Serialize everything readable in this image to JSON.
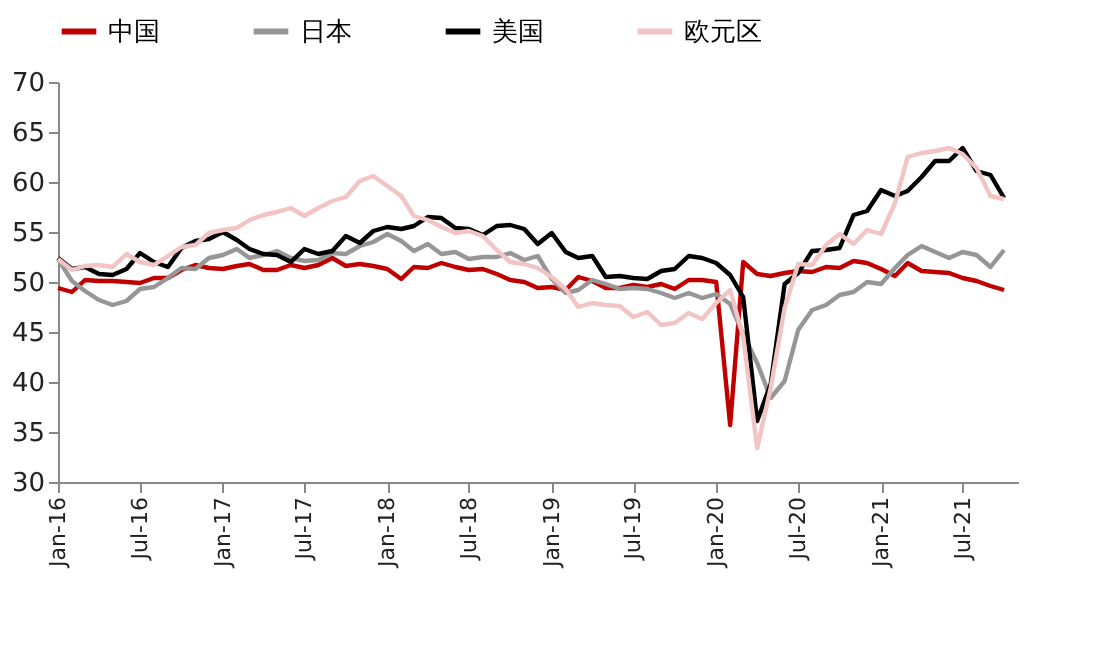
{
  "chart_data": {
    "type": "line",
    "x": [
      "2016-01",
      "2016-02",
      "2016-03",
      "2016-04",
      "2016-05",
      "2016-06",
      "2016-07",
      "2016-08",
      "2016-09",
      "2016-10",
      "2016-11",
      "2016-12",
      "2017-01",
      "2017-02",
      "2017-03",
      "2017-04",
      "2017-05",
      "2017-06",
      "2017-07",
      "2017-08",
      "2017-09",
      "2017-10",
      "2017-11",
      "2017-12",
      "2018-01",
      "2018-02",
      "2018-03",
      "2018-04",
      "2018-05",
      "2018-06",
      "2018-07",
      "2018-08",
      "2018-09",
      "2018-10",
      "2018-11",
      "2018-12",
      "2019-01",
      "2019-02",
      "2019-03",
      "2019-04",
      "2019-05",
      "2019-06",
      "2019-07",
      "2019-08",
      "2019-09",
      "2019-10",
      "2019-11",
      "2019-12",
      "2020-01",
      "2020-02",
      "2020-03",
      "2020-04",
      "2020-05",
      "2020-06",
      "2020-07",
      "2020-08",
      "2020-09",
      "2020-10",
      "2020-11",
      "2020-12",
      "2021-01",
      "2021-02",
      "2021-03",
      "2021-04",
      "2021-05",
      "2021-06",
      "2021-07",
      "2021-08",
      "2021-09",
      "2021-10"
    ],
    "xlim": [
      "2016-01",
      "2021-11"
    ],
    "ylim": [
      30,
      70
    ],
    "yticks": [
      30,
      35,
      40,
      45,
      50,
      55,
      60,
      65,
      70
    ],
    "xticks": [
      {
        "value": "2016-01",
        "label": "Jan-16"
      },
      {
        "value": "2016-07",
        "label": "Jul-16"
      },
      {
        "value": "2017-01",
        "label": "Jan-17"
      },
      {
        "value": "2017-07",
        "label": "Jul-17"
      },
      {
        "value": "2018-01",
        "label": "Jan-18"
      },
      {
        "value": "2018-07",
        "label": "Jul-18"
      },
      {
        "value": "2019-01",
        "label": "Jan-19"
      },
      {
        "value": "2019-07",
        "label": "Jul-19"
      },
      {
        "value": "2020-01",
        "label": "Jan-20"
      },
      {
        "value": "2020-07",
        "label": "Jul-20"
      },
      {
        "value": "2021-01",
        "label": "Jan-21"
      },
      {
        "value": "2021-07",
        "label": "Jul-21"
      }
    ],
    "grid": false,
    "legend": "top",
    "marker": "none",
    "line_style": "solid",
    "series": [
      {
        "name": "中国",
        "color": "#c00000",
        "values": [
          49.4,
          49.0,
          50.2,
          50.1,
          50.1,
          50.0,
          49.9,
          50.4,
          50.4,
          51.2,
          51.7,
          51.4,
          51.3,
          51.6,
          51.8,
          51.2,
          51.2,
          51.7,
          51.4,
          51.7,
          52.4,
          51.6,
          51.8,
          51.6,
          51.3,
          50.3,
          51.5,
          51.4,
          51.9,
          51.5,
          51.2,
          51.3,
          50.8,
          50.2,
          50.0,
          49.4,
          49.5,
          49.2,
          50.5,
          50.1,
          49.4,
          49.4,
          49.7,
          49.5,
          49.8,
          49.3,
          50.2,
          50.2,
          50.0,
          35.7,
          52.0,
          50.8,
          50.6,
          50.9,
          51.1,
          51.0,
          51.5,
          51.4,
          52.1,
          51.9,
          51.3,
          50.6,
          51.9,
          51.1,
          51.0,
          50.9,
          50.4,
          50.1,
          49.6,
          49.2
        ]
      },
      {
        "name": "日本",
        "color": "#969696",
        "values": [
          52.3,
          50.1,
          49.1,
          48.2,
          47.7,
          48.1,
          49.3,
          49.5,
          50.4,
          51.4,
          51.3,
          52.4,
          52.7,
          53.3,
          52.4,
          52.7,
          53.1,
          52.4,
          52.1,
          52.2,
          52.9,
          52.8,
          53.6,
          54.0,
          54.8,
          54.1,
          53.1,
          53.8,
          52.8,
          53.0,
          52.3,
          52.5,
          52.5,
          52.9,
          52.2,
          52.6,
          50.3,
          48.9,
          49.2,
          50.2,
          49.8,
          49.3,
          49.4,
          49.3,
          48.9,
          48.4,
          48.9,
          48.4,
          48.8,
          47.8,
          44.8,
          41.9,
          38.4,
          40.1,
          45.2,
          47.2,
          47.7,
          48.7,
          49.0,
          50.0,
          49.8,
          51.4,
          52.7,
          53.6,
          53.0,
          52.4,
          53.0,
          52.7,
          51.5,
          53.2
        ]
      },
      {
        "name": "美国",
        "color": "#000000",
        "values": [
          52.4,
          51.3,
          51.5,
          50.8,
          50.7,
          51.3,
          52.9,
          52.0,
          51.5,
          53.4,
          54.1,
          54.3,
          55.0,
          54.2,
          53.3,
          52.8,
          52.7,
          52.0,
          53.3,
          52.8,
          53.1,
          54.6,
          53.9,
          55.1,
          55.5,
          55.3,
          55.6,
          56.5,
          56.4,
          55.4,
          55.3,
          54.7,
          55.6,
          55.7,
          55.3,
          53.8,
          54.9,
          53.0,
          52.4,
          52.6,
          50.5,
          50.6,
          50.4,
          50.3,
          51.1,
          51.3,
          52.6,
          52.4,
          51.9,
          50.7,
          48.5,
          36.1,
          39.8,
          49.8,
          50.9,
          53.1,
          53.2,
          53.4,
          56.7,
          57.1,
          59.2,
          58.6,
          59.1,
          60.5,
          62.1,
          62.1,
          63.4,
          61.1,
          60.7,
          58.4
        ]
      },
      {
        "name": "欧元区",
        "color": "#f2c4c4",
        "values": [
          52.3,
          51.2,
          51.6,
          51.7,
          51.5,
          52.8,
          52.0,
          51.7,
          52.6,
          53.5,
          53.7,
          54.9,
          55.2,
          55.4,
          56.2,
          56.7,
          57.0,
          57.4,
          56.6,
          57.4,
          58.1,
          58.5,
          60.1,
          60.6,
          59.6,
          58.6,
          56.6,
          56.2,
          55.5,
          54.9,
          55.1,
          54.6,
          53.2,
          52.0,
          51.8,
          51.4,
          50.5,
          49.3,
          47.5,
          47.9,
          47.7,
          47.6,
          46.5,
          47.0,
          45.7,
          45.9,
          46.9,
          46.3,
          47.9,
          49.2,
          44.5,
          33.4,
          39.4,
          47.4,
          51.8,
          51.7,
          53.7,
          54.8,
          53.8,
          55.2,
          54.8,
          57.9,
          62.5,
          62.9,
          63.1,
          63.4,
          62.8,
          61.4,
          58.6,
          58.3
        ]
      }
    ]
  }
}
